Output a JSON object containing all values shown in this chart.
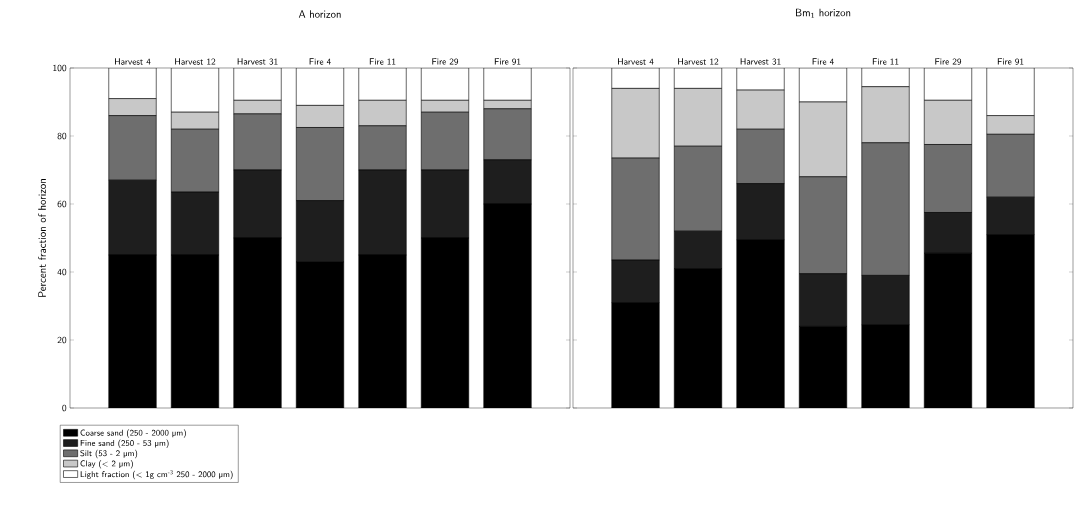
{
  "chart_data": [
    {
      "type": "bar",
      "title": "A horizon",
      "ylabel": "Percent fraction of horizon",
      "stacked": true,
      "legend": "bottom left",
      "categories": [
        "Harvest 4",
        "Harvest 12",
        "Harvest 31",
        "Fire 4",
        "Fire 11",
        "Fire 29",
        "Fire 91"
      ],
      "ylim": [
        0,
        100
      ],
      "yticks": [
        0,
        20,
        40,
        60,
        80,
        100
      ],
      "series": [
        {
          "name": "Coarse sand (250 - 2000 µm)",
          "color": "#000000",
          "values": [
            45,
            45,
            50,
            43,
            45,
            50,
            60
          ]
        },
        {
          "name": "Fine sand (250 - 53 µm)",
          "color": "#1e1e1e",
          "values": [
            22,
            18.5,
            20,
            18,
            25,
            20,
            13
          ]
        },
        {
          "name": "Silt (53 - 2 µm)",
          "color": "#6e6e6e",
          "values": [
            19,
            18.5,
            16.5,
            21.5,
            13,
            17,
            15
          ]
        },
        {
          "name": "Clay (< 2 µm)",
          "color": "#c8c8c8",
          "values": [
            5,
            5,
            4,
            6.5,
            7.5,
            3.5,
            2.5
          ]
        },
        {
          "name": "Light fraction (< 1g cm$^{-3}$ 250 - 2000 µm)",
          "color": "#ffffff",
          "values": [
            9,
            13,
            9.5,
            11,
            9.5,
            9.5,
            9.5
          ]
        }
      ]
    },
    {
      "type": "bar",
      "title": "Bm$_{1}$ horizon",
      "stacked": true,
      "tick_labels": "x",
      "categories": [
        "Harvest 4",
        "Harvest 12",
        "Harvest 31",
        "Fire 4",
        "Fire 11",
        "Fire 29",
        "Fire 91"
      ],
      "ylim": [
        0,
        100
      ],
      "yticks": [
        0,
        20,
        40,
        60,
        80,
        100
      ],
      "series": [
        {
          "color": "#000000",
          "values": [
            31,
            41,
            49.5,
            24,
            24.5,
            45.5,
            51
          ]
        },
        {
          "color": "#1e1e1e",
          "values": [
            12.5,
            11,
            16.5,
            15.5,
            14.5,
            12,
            11
          ]
        },
        {
          "color": "#6e6e6e",
          "values": [
            30,
            25,
            16,
            28.5,
            39,
            20,
            18.5
          ]
        },
        {
          "color": "#c8c8c8",
          "values": [
            20.5,
            17,
            11.5,
            22,
            16.5,
            13,
            5.5
          ]
        },
        {
          "color": "#ffffff",
          "values": [
            6,
            6,
            6.5,
            10,
            5.5,
            9.5,
            14
          ]
        }
      ]
    }
  ]
}
